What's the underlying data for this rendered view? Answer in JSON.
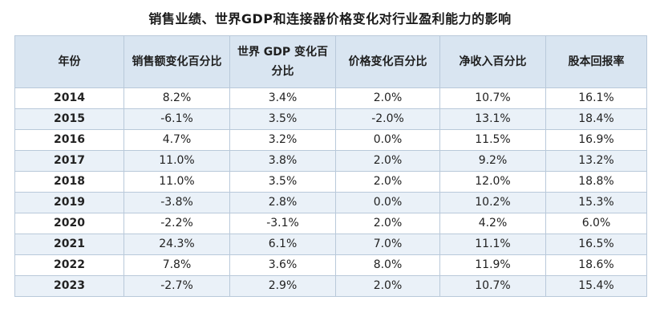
{
  "chart_data": {
    "type": "table",
    "title": "销售业绩、世界GDP和连接器价格变化对行业盈利能力的影响",
    "columns": [
      "年份",
      "销售额变化百分比",
      "世界 GDP 变化百分比",
      "价格变化百分比",
      "净收入百分比",
      "股本回报率"
    ],
    "rows": [
      [
        "2014",
        "8.2%",
        "3.4%",
        "2.0%",
        "10.7%",
        "16.1%"
      ],
      [
        "2015",
        "-6.1%",
        "3.5%",
        "-2.0%",
        "13.1%",
        "18.4%"
      ],
      [
        "2016",
        "4.7%",
        "3.2%",
        "0.0%",
        "11.5%",
        "16.9%"
      ],
      [
        "2017",
        "11.0%",
        "3.8%",
        "2.0%",
        "9.2%",
        "13.2%"
      ],
      [
        "2018",
        "11.0%",
        "3.5%",
        "2.0%",
        "12.0%",
        "18.8%"
      ],
      [
        "2019",
        "-3.8%",
        "2.8%",
        "0.0%",
        "10.2%",
        "15.3%"
      ],
      [
        "2020",
        "-2.2%",
        "-3.1%",
        "2.0%",
        "4.2%",
        "6.0%"
      ],
      [
        "2021",
        "24.3%",
        "6.1%",
        "7.0%",
        "11.1%",
        "16.5%"
      ],
      [
        "2022",
        "7.8%",
        "3.6%",
        "8.0%",
        "11.9%",
        "18.6%"
      ],
      [
        "2023",
        "-2.7%",
        "2.9%",
        "2.0%",
        "10.7%",
        "15.4%"
      ]
    ]
  },
  "colors": {
    "header_bg": "#d9e5f1",
    "stripe_bg": "#eaf1f8",
    "border": "#b9c9da"
  }
}
